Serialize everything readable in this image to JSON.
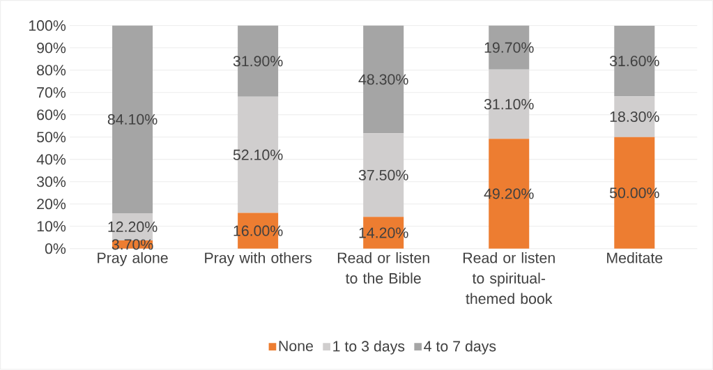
{
  "chart_data": {
    "type": "bar",
    "stacked": true,
    "categories": [
      "Pray alone",
      "Pray with others",
      "Read or listen to the Bible",
      "Read or listen to spiritual-themed book",
      "Meditate"
    ],
    "series": [
      {
        "name": "None",
        "color": "#ed7d31",
        "values": [
          3.7,
          16.0,
          14.2,
          49.2,
          50.0
        ],
        "value_labels": [
          "3.70%",
          "16.00%",
          "14.20%",
          "49.20%",
          "50.00%"
        ]
      },
      {
        "name": "1 to 3 days",
        "color": "#d0cece",
        "values": [
          12.2,
          52.1,
          37.5,
          31.1,
          18.3
        ],
        "value_labels": [
          "12.20%",
          "52.10%",
          "37.50%",
          "31.10%",
          "18.30%"
        ]
      },
      {
        "name": "4 to 7 days",
        "color": "#a5a5a5",
        "values": [
          84.1,
          31.9,
          48.3,
          19.7,
          31.6
        ],
        "value_labels": [
          "84.10%",
          "31.90%",
          "48.30%",
          "19.70%",
          "31.60%"
        ]
      }
    ],
    "ylim": [
      0,
      100
    ],
    "yticks": [
      {
        "value": 0,
        "label": "0%"
      },
      {
        "value": 10,
        "label": "10%"
      },
      {
        "value": 20,
        "label": "20%"
      },
      {
        "value": 30,
        "label": "30%"
      },
      {
        "value": 40,
        "label": "40%"
      },
      {
        "value": 50,
        "label": "50%"
      },
      {
        "value": 60,
        "label": "60%"
      },
      {
        "value": 70,
        "label": "70%"
      },
      {
        "value": 80,
        "label": "80%"
      },
      {
        "value": 90,
        "label": "90%"
      },
      {
        "value": 100,
        "label": "100%"
      }
    ],
    "grid": "y",
    "legend": "bottom"
  }
}
